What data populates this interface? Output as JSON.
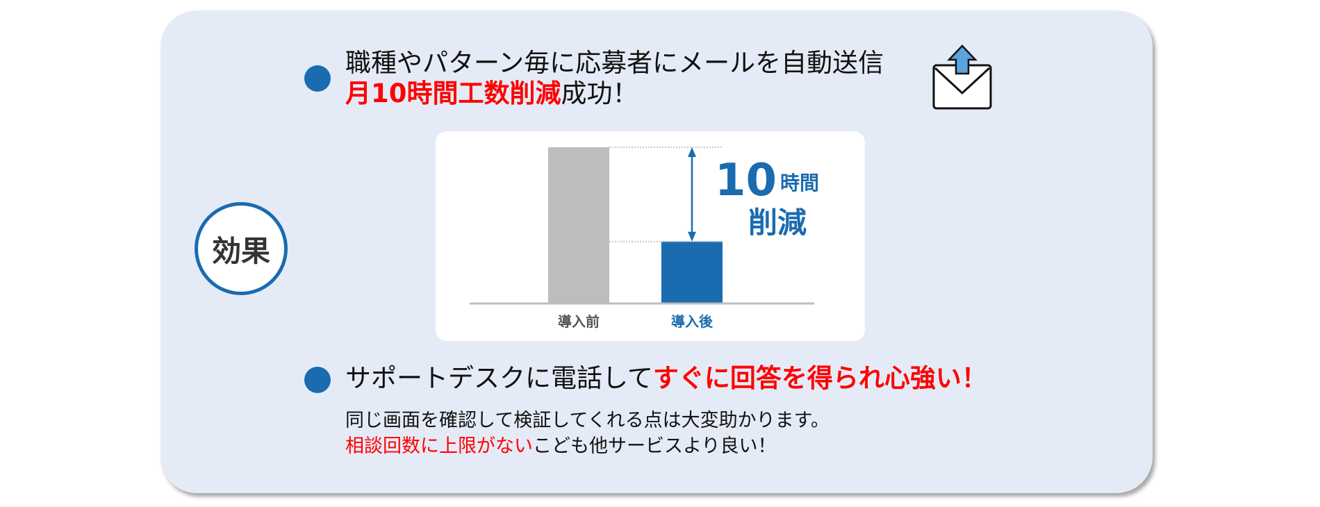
{
  "badge": {
    "label": "効果"
  },
  "point1": {
    "line1": "職種やパターン毎に応募者にメールを自動送信",
    "line2_highlight": "月10時間工数削減",
    "line2_rest": "成功！",
    "icon": "envelope-send-icon"
  },
  "point2": {
    "headline_plain": "サポートデスクに電話して",
    "headline_highlight": "すぐに回答を得られ心強い！",
    "body_line1": "同じ画面を確認して検証してくれる点は大変助かります。",
    "body_line2_highlight": "相談回数に上限がない",
    "body_line2_rest": "こども他サービスより良い！"
  },
  "colors": {
    "accent": "#1a6bb0",
    "highlight": "#ff0000",
    "panel": "#e5ebf6",
    "before_bar": "#bdbdbd"
  },
  "chart_data": {
    "type": "bar",
    "categories": [
      "導入前",
      "導入後"
    ],
    "values": [
      16.5,
      6.5
    ],
    "bar_colors": [
      "#bdbdbd",
      "#1a6bb0"
    ],
    "label_colors": [
      "#555555",
      "#1a6bb0"
    ],
    "annotation": {
      "number": "10",
      "unit": "時間",
      "text": "削減"
    },
    "grid": false
  }
}
